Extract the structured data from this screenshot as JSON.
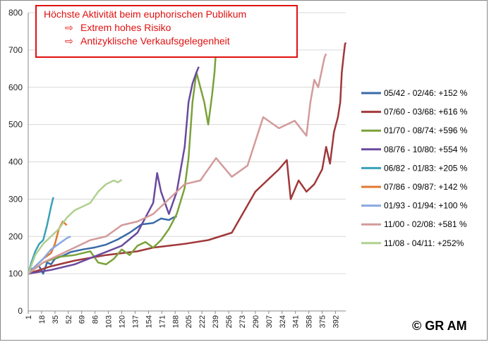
{
  "chart_data": {
    "type": "line",
    "y_axis": {
      "min": 0,
      "max": 800,
      "ticks": [
        0,
        100,
        200,
        300,
        400,
        500,
        600,
        700,
        800
      ]
    },
    "x_axis": {
      "min": 1,
      "max": 405,
      "tick_labels": [
        1,
        18,
        35,
        52,
        69,
        86,
        103,
        120,
        137,
        154,
        171,
        188,
        205,
        222,
        239,
        256,
        273,
        290,
        307,
        324,
        341,
        358,
        375,
        392
      ]
    },
    "grid": true,
    "legend_position": "right",
    "annotation": {
      "title": "Höchste Aktivität beim euphorischen Publikum",
      "lines": [
        "Extrem hohes Risiko",
        "Antizyklische Verkaufsgelegenheit"
      ],
      "arrow_icon": "right-outline-arrow-icon",
      "color": "#e01010"
    },
    "series": [
      {
        "name": "05/42 - 02/46: +152 %",
        "color": "#3a6aa8",
        "x": [
          1,
          5,
          10,
          15,
          20,
          25,
          30,
          35,
          45,
          55,
          70,
          85,
          100,
          115,
          130,
          145,
          160,
          170,
          180,
          185,
          190
        ],
        "y": [
          105,
          112,
          118,
          120,
          100,
          130,
          125,
          140,
          148,
          158,
          165,
          170,
          178,
          192,
          210,
          232,
          236,
          248,
          244,
          250,
          254
        ]
      },
      {
        "name": "07/60 - 03/68: +616 %",
        "color": "#a0383a",
        "x": [
          1,
          30,
          60,
          100,
          140,
          160,
          180,
          200,
          230,
          260,
          275,
          290,
          305,
          320,
          330,
          335,
          345,
          355,
          365,
          375,
          380,
          385,
          390,
          395,
          398,
          400,
          402,
          404,
          405
        ],
        "y": [
          100,
          120,
          135,
          150,
          160,
          170,
          175,
          180,
          190,
          210,
          265,
          320,
          350,
          380,
          405,
          300,
          350,
          320,
          340,
          380,
          440,
          395,
          480,
          520,
          560,
          640,
          680,
          715,
          720
        ]
      },
      {
        "name": "01/70 - 08/74: +596 %",
        "color": "#7aa23a",
        "x": [
          1,
          20,
          40,
          60,
          80,
          90,
          100,
          110,
          120,
          130,
          140,
          150,
          160,
          170,
          180,
          190,
          200,
          205,
          210,
          215,
          220,
          225,
          230,
          235,
          238,
          240
        ],
        "y": [
          100,
          130,
          145,
          150,
          160,
          130,
          125,
          140,
          165,
          150,
          175,
          185,
          170,
          190,
          220,
          260,
          330,
          410,
          560,
          640,
          600,
          560,
          500,
          580,
          640,
          700
        ]
      },
      {
        "name": "08/76 - 10/80: +554 %",
        "color": "#6a4a9e",
        "x": [
          1,
          30,
          60,
          90,
          120,
          140,
          160,
          165,
          170,
          180,
          190,
          195,
          200,
          205,
          210,
          215,
          218
        ],
        "y": [
          100,
          110,
          125,
          150,
          175,
          210,
          290,
          370,
          320,
          260,
          320,
          380,
          440,
          560,
          610,
          640,
          655
        ]
      },
      {
        "name": "06/82 - 01/83: +205 %",
        "color": "#3aa0b8",
        "x": [
          1,
          5,
          10,
          15,
          20,
          25,
          28,
          30,
          33
        ],
        "y": [
          100,
          130,
          160,
          180,
          190,
          230,
          260,
          280,
          305
        ]
      },
      {
        "name": "07/86 - 09/87: +142 %",
        "color": "#e07830",
        "x": [
          1,
          10,
          20,
          30,
          35,
          40,
          45,
          50
        ],
        "y": [
          100,
          120,
          140,
          155,
          180,
          220,
          240,
          230
        ]
      },
      {
        "name": "01/93 - 01/94: +100 %",
        "color": "#8aa8e0",
        "x": [
          1,
          10,
          20,
          30,
          40,
          50,
          55
        ],
        "y": [
          100,
          120,
          140,
          165,
          180,
          195,
          200
        ]
      },
      {
        "name": "11/00 - 02/08: +581 %",
        "color": "#d49a9a",
        "x": [
          1,
          20,
          40,
          60,
          80,
          100,
          120,
          140,
          160,
          180,
          200,
          220,
          240,
          260,
          280,
          300,
          320,
          340,
          355,
          360,
          365,
          370,
          375,
          378,
          380
        ],
        "y": [
          100,
          130,
          150,
          170,
          190,
          200,
          230,
          240,
          260,
          300,
          340,
          350,
          410,
          360,
          390,
          520,
          490,
          510,
          470,
          560,
          620,
          600,
          650,
          680,
          690
        ]
      },
      {
        "name": "11/08 - 04/11: +252%",
        "color": "#b0d090",
        "x": [
          1,
          10,
          20,
          30,
          40,
          50,
          60,
          70,
          80,
          90,
          100,
          110,
          115,
          120
        ],
        "y": [
          100,
          150,
          180,
          200,
          220,
          250,
          270,
          280,
          290,
          320,
          340,
          350,
          345,
          352
        ]
      }
    ]
  },
  "copyright": "© GR AM"
}
